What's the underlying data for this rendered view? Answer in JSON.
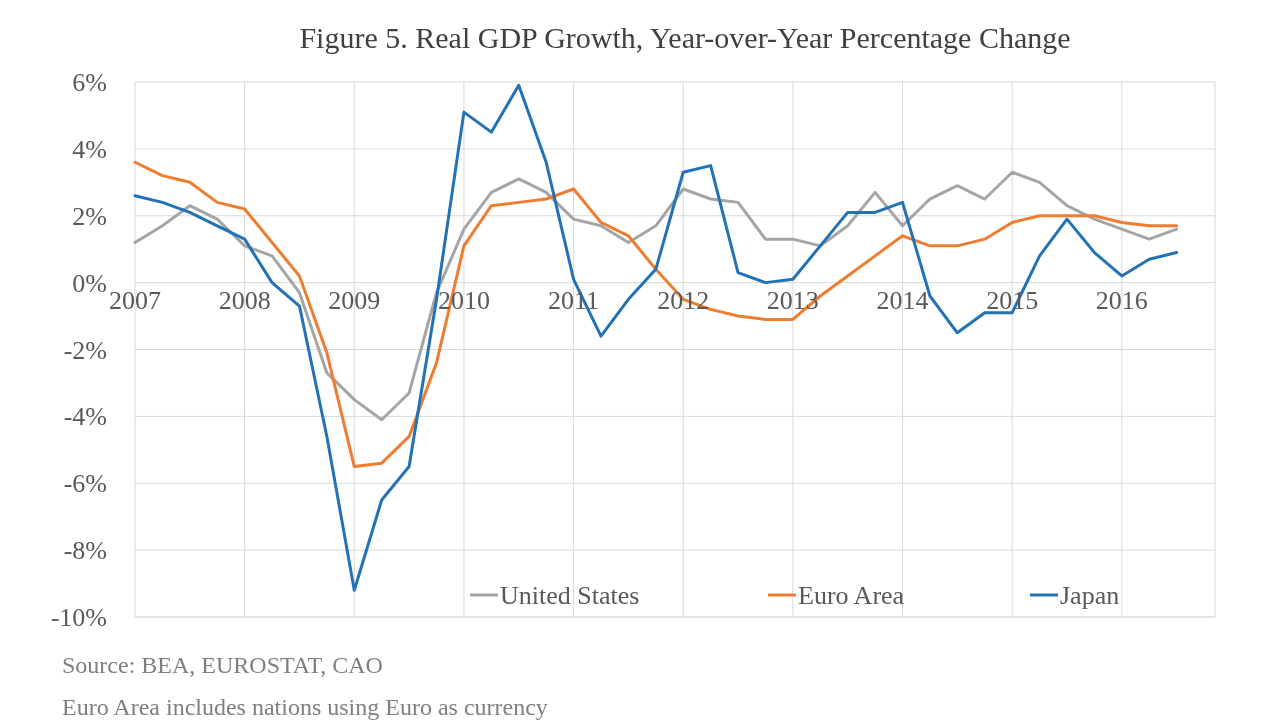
{
  "chart_data": {
    "type": "line",
    "title": "Figure 5. Real GDP Growth, Year-over-Year Percentage Change",
    "x": [
      2007,
      2007.25,
      2007.5,
      2007.75,
      2008,
      2008.25,
      2008.5,
      2008.75,
      2009,
      2009.25,
      2009.5,
      2009.75,
      2010,
      2010.25,
      2010.5,
      2010.75,
      2011,
      2011.25,
      2011.5,
      2011.75,
      2012,
      2012.25,
      2012.5,
      2012.75,
      2013,
      2013.25,
      2013.5,
      2013.75,
      2014,
      2014.25,
      2014.5,
      2014.75,
      2015,
      2015.25,
      2015.5,
      2015.75,
      2016,
      2016.25,
      2016.5
    ],
    "series": [
      {
        "name": "United States",
        "color": "#a5a5a5",
        "values": [
          1.2,
          1.7,
          2.3,
          1.9,
          1.1,
          0.8,
          -0.3,
          -2.7,
          -3.5,
          -4.1,
          -3.3,
          -0.3,
          1.6,
          2.7,
          3.1,
          2.7,
          1.9,
          1.7,
          1.2,
          1.7,
          2.8,
          2.5,
          2.4,
          1.3,
          1.3,
          1.1,
          1.7,
          2.7,
          1.7,
          2.5,
          2.9,
          2.5,
          3.3,
          3.0,
          2.3,
          1.9,
          1.6,
          1.3,
          1.6
        ]
      },
      {
        "name": "Euro Area",
        "color": "#ed7d31",
        "values": [
          3.6,
          3.2,
          3.0,
          2.4,
          2.2,
          1.2,
          0.2,
          -2.1,
          -5.5,
          -5.4,
          -4.6,
          -2.4,
          1.1,
          2.3,
          2.4,
          2.5,
          2.8,
          1.8,
          1.4,
          0.4,
          -0.5,
          -0.8,
          -1.0,
          -1.1,
          -1.1,
          -0.4,
          0.2,
          0.8,
          1.4,
          1.1,
          1.1,
          1.3,
          1.8,
          2.0,
          2.0,
          2.0,
          1.8,
          1.7,
          1.7
        ]
      },
      {
        "name": "Japan",
        "color": "#2372b6",
        "values": [
          2.6,
          2.4,
          2.1,
          1.7,
          1.3,
          0.0,
          -0.7,
          -4.6,
          -9.2,
          -6.5,
          -5.5,
          -0.5,
          5.1,
          4.5,
          5.9,
          3.6,
          0.1,
          -1.6,
          -0.5,
          0.4,
          3.3,
          3.5,
          0.3,
          0.0,
          0.1,
          1.1,
          2.1,
          2.1,
          2.4,
          -0.4,
          -1.5,
          -0.9,
          -0.9,
          0.8,
          1.9,
          0.9,
          0.2,
          0.7,
          0.9
        ]
      }
    ],
    "xlim": [
      2007,
      2016.85
    ],
    "xticks": [
      2007,
      2008,
      2009,
      2010,
      2011,
      2012,
      2013,
      2014,
      2015,
      2016
    ],
    "ylim": [
      -10,
      6
    ],
    "yticks": [
      {
        "value": -10,
        "label": "-10%"
      },
      {
        "value": -8,
        "label": "-8%"
      },
      {
        "value": -6,
        "label": "-6%"
      },
      {
        "value": -4,
        "label": "-4%"
      },
      {
        "value": -2,
        "label": "-2%"
      },
      {
        "value": 0,
        "label": "0%"
      },
      {
        "value": 2,
        "label": "2%"
      },
      {
        "value": 4,
        "label": "4%"
      },
      {
        "value": 6,
        "label": "6%"
      }
    ],
    "grid": true,
    "legend": "bottom",
    "marker": "none",
    "line_style": "solid",
    "annotations": [
      "Source: BEA, EUROSTAT, CAO",
      "Euro Area includes nations using Euro as currency"
    ]
  }
}
